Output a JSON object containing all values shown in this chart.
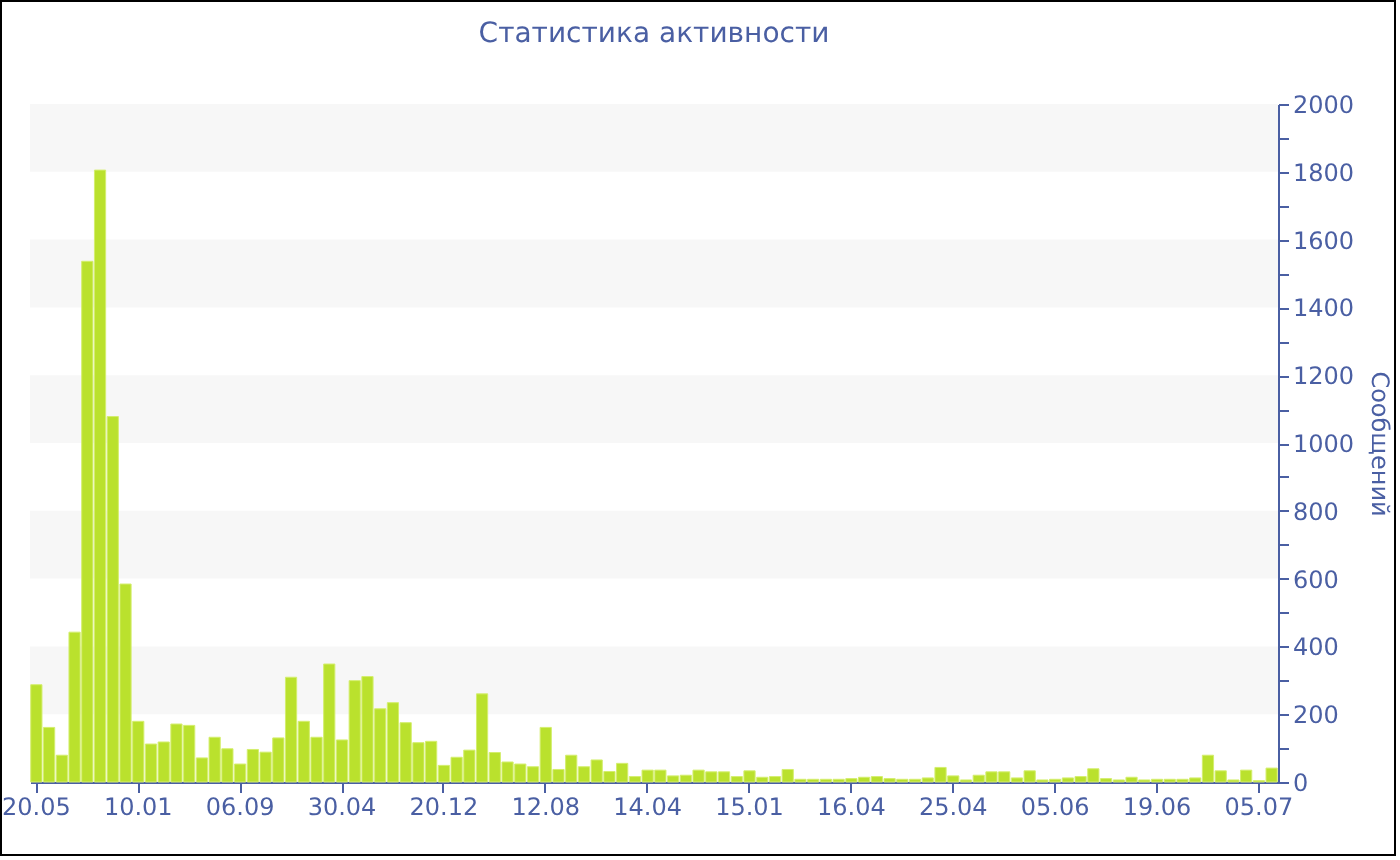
{
  "chart_data": {
    "type": "bar",
    "title": "Статистика активности",
    "ylabel": "Сообщений",
    "categories": [
      "20.05",
      null,
      null,
      null,
      null,
      null,
      null,
      null,
      "10.01",
      null,
      null,
      null,
      null,
      null,
      null,
      null,
      "06.09",
      null,
      null,
      null,
      null,
      null,
      null,
      null,
      "30.04",
      null,
      null,
      null,
      null,
      null,
      null,
      null,
      "20.12",
      null,
      null,
      null,
      null,
      null,
      null,
      null,
      "12.08",
      null,
      null,
      null,
      null,
      null,
      null,
      null,
      "14.04",
      null,
      null,
      null,
      null,
      null,
      null,
      null,
      "15.01",
      null,
      null,
      null,
      null,
      null,
      null,
      null,
      "16.04",
      null,
      null,
      null,
      null,
      null,
      null,
      null,
      "25.04",
      null,
      null,
      null,
      null,
      null,
      null,
      null,
      "05.06",
      null,
      null,
      null,
      null,
      null,
      null,
      null,
      "19.06",
      null,
      null,
      null,
      null,
      null,
      null,
      null,
      "05.07",
      null
    ],
    "values": [
      287,
      161,
      79,
      442,
      1536,
      1805,
      1078,
      584,
      179,
      112,
      118,
      171,
      167,
      71,
      132,
      98,
      53,
      96,
      88,
      130,
      309,
      179,
      132,
      348,
      124,
      299,
      311,
      216,
      234,
      175,
      116,
      120,
      49,
      73,
      94,
      260,
      87,
      59,
      53,
      45,
      161,
      37,
      79,
      45,
      65,
      31,
      55,
      16,
      35,
      35,
      18,
      20,
      35,
      30,
      30,
      16,
      33,
      14,
      16,
      37,
      8,
      8,
      8,
      8,
      10,
      14,
      16,
      10,
      8,
      8,
      12,
      43,
      18,
      6,
      20,
      30,
      30,
      12,
      33,
      6,
      8,
      12,
      16,
      39,
      10,
      6,
      14,
      6,
      8,
      8,
      8,
      12,
      79,
      33,
      6,
      35,
      4,
      41
    ],
    "color": "#bae12d",
    "ylim": [
      0,
      2000
    ],
    "yticks": [
      0,
      {
        "value": 100,
        "label": null
      },
      200,
      {
        "value": 300,
        "label": null
      },
      400,
      {
        "value": 500,
        "label": null
      },
      600,
      {
        "value": 700,
        "label": null
      },
      800,
      {
        "value": 900,
        "label": null
      },
      1000,
      {
        "value": 1100,
        "label": null
      },
      1200,
      {
        "value": 1300,
        "label": null
      },
      1400,
      {
        "value": 1500,
        "label": null
      },
      1600,
      {
        "value": 1700,
        "label": null
      },
      1800,
      {
        "value": 1900,
        "label": null
      },
      2000
    ],
    "bands": [
      {
        "axis": "y",
        "from": 200,
        "to": 400,
        "color": "#f7f7f7"
      },
      {
        "axis": "y",
        "from": 600,
        "to": 800,
        "color": "#f7f7f7"
      },
      {
        "axis": "y",
        "from": 1000,
        "to": 1200,
        "color": "#f7f7f7"
      },
      {
        "axis": "y",
        "from": 1400,
        "to": 1600,
        "color": "#f7f7f7"
      },
      {
        "axis": "y",
        "from": 1800,
        "to": 2000,
        "color": "#f7f7f7"
      }
    ]
  }
}
